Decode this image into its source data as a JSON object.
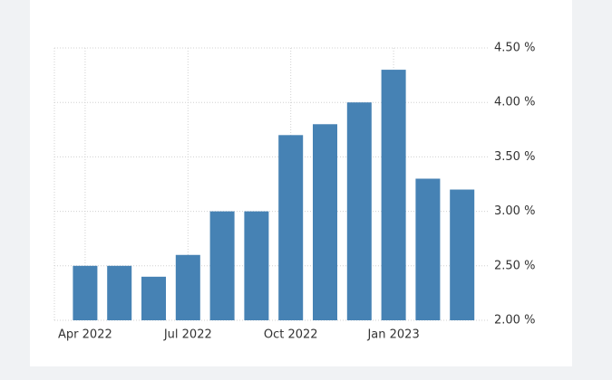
{
  "chart_data": {
    "type": "bar",
    "categories": [
      "Apr 2022",
      null,
      null,
      "Jul 2022",
      null,
      null,
      "Oct 2022",
      null,
      null,
      "Jan 2023",
      null,
      null
    ],
    "values": [
      2.5,
      2.5,
      2.4,
      2.6,
      3.0,
      3.0,
      3.7,
      3.8,
      4.0,
      4.3,
      3.3,
      3.2
    ],
    "color": "#4682b4",
    "ylim": [
      2,
      4.5
    ],
    "yticks": [
      {
        "value": 2,
        "label": "2.00 %"
      },
      {
        "value": 2.5,
        "label": "2.50 %"
      },
      {
        "value": 3,
        "label": "3.00 %"
      },
      {
        "value": 3.5,
        "label": "3.50 %"
      },
      {
        "value": 4,
        "label": "4.00 %"
      },
      {
        "value": 4.5,
        "label": "4.50 %"
      }
    ],
    "grid": true
  }
}
